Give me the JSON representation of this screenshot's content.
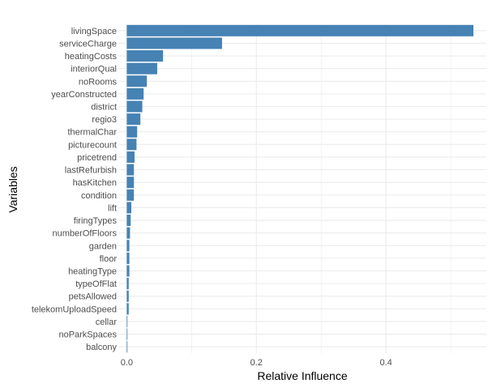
{
  "chart_data": {
    "type": "bar",
    "orientation": "horizontal",
    "xlabel": "Relative Influence",
    "ylabel": "Variables",
    "xlim": [
      -0.013,
      0.555
    ],
    "x_ticks": [
      0.0,
      0.2,
      0.4
    ],
    "x_tick_labels": [
      "0.0",
      "0.2",
      "0.4"
    ],
    "grid": true,
    "bar_color": "#4682B4",
    "categories": [
      "livingSpace",
      "serviceCharge",
      "heatingCosts",
      "interiorQual",
      "noRooms",
      "yearConstructed",
      "district",
      "regio3",
      "thermalChar",
      "picturecount",
      "pricetrend",
      "lastRefurbish",
      "hasKitchen",
      "condition",
      "lift",
      "firingTypes",
      "numberOfFloors",
      "garden",
      "floor",
      "heatingType",
      "typeOfFlat",
      "petsAllowed",
      "telekomUploadSpeed",
      "cellar",
      "noParkSpaces",
      "balcony"
    ],
    "values": [
      0.535,
      0.147,
      0.056,
      0.047,
      0.031,
      0.026,
      0.024,
      0.021,
      0.016,
      0.015,
      0.012,
      0.011,
      0.011,
      0.011,
      0.007,
      0.006,
      0.005,
      0.004,
      0.004,
      0.004,
      0.003,
      0.003,
      0.003,
      0.001,
      0.001,
      0.001
    ]
  }
}
